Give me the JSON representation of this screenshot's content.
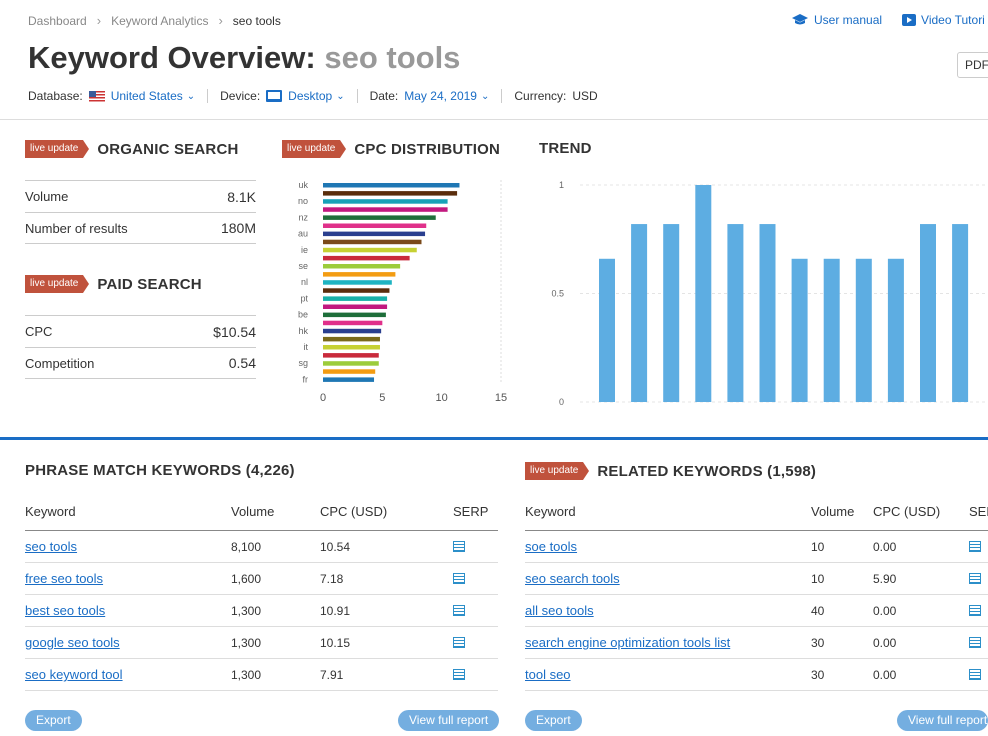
{
  "breadcrumb": [
    "Dashboard",
    "Keyword Analytics",
    "seo tools"
  ],
  "top_links": {
    "manual": "User manual",
    "video": "Video Tutori"
  },
  "title": {
    "prefix": "Keyword Overview:",
    "keyword": "seo tools"
  },
  "pdf_label": "PDF",
  "filters": {
    "database_label": "Database:",
    "database_value": "United States",
    "device_label": "Device:",
    "device_value": "Desktop",
    "date_label": "Date:",
    "date_value": "May 24, 2019",
    "currency_label": "Currency:",
    "currency_value": "USD"
  },
  "live_badge": "live update",
  "organic": {
    "title": "ORGANIC SEARCH",
    "rows": [
      {
        "label": "Volume",
        "value": "8.1K"
      },
      {
        "label": "Number of results",
        "value": "180M"
      }
    ]
  },
  "paid": {
    "title": "PAID SEARCH",
    "rows": [
      {
        "label": "CPC",
        "value": "$10.54"
      },
      {
        "label": "Competition",
        "value": "0.54"
      }
    ]
  },
  "cpc_distribution": {
    "title": "CPC DISTRIBUTION",
    "chart_data": {
      "type": "bar",
      "orientation": "horizontal",
      "categories": [
        "uk",
        "",
        "no",
        "",
        "nz",
        "",
        "au",
        "",
        "ie",
        "",
        "se",
        "",
        "nl",
        "",
        "pt",
        "",
        "be",
        "",
        "hk",
        "",
        "it",
        "",
        "sg",
        "",
        "fr"
      ],
      "values": [
        11.5,
        11.3,
        10.5,
        10.5,
        9.5,
        8.7,
        8.6,
        8.3,
        7.9,
        7.3,
        6.5,
        6.1,
        5.8,
        5.6,
        5.4,
        5.4,
        5.3,
        5.0,
        4.9,
        4.8,
        4.8,
        4.7,
        4.7,
        4.4,
        4.3
      ],
      "colors": [
        "#1f77b4",
        "#5a2d0c",
        "#17a2b8",
        "#c2197f",
        "#1e6e3a",
        "#e0308a",
        "#2a3f8f",
        "#7a4a1a",
        "#c6d133",
        "#c92a3b",
        "#9ccc3b",
        "#f39c12",
        "#1fb4c2",
        "#5a2d0c",
        "#18b0a8",
        "#c2197f",
        "#1e6e3a",
        "#e0308a",
        "#2a3f8f",
        "#7a6a1a",
        "#c6d133",
        "#c92a3b",
        "#9ccc3b",
        "#f39c12",
        "#1f77b4"
      ],
      "xticks": [
        "0",
        "5",
        "10",
        "15"
      ],
      "xlim": [
        0,
        15
      ]
    }
  },
  "trend": {
    "title": "TREND",
    "chart_data": {
      "type": "bar",
      "values": [
        0.66,
        0.82,
        0.82,
        1.0,
        0.82,
        0.82,
        0.66,
        0.66,
        0.66,
        0.66,
        0.82,
        0.82
      ],
      "yticks": [
        "1",
        "0.5",
        "0"
      ],
      "ylim": [
        0,
        1
      ],
      "color": "#5dade2",
      "grid": true
    }
  },
  "phrase_match": {
    "title": "PHRASE MATCH KEYWORDS (4,226)",
    "columns": [
      "Keyword",
      "Volume",
      "CPC (USD)",
      "SERP"
    ],
    "rows": [
      {
        "keyword": "seo tools",
        "volume": "8,100",
        "cpc": "10.54"
      },
      {
        "keyword": "free seo tools",
        "volume": "1,600",
        "cpc": "7.18"
      },
      {
        "keyword": "best seo tools",
        "volume": "1,300",
        "cpc": "10.91"
      },
      {
        "keyword": "google seo tools",
        "volume": "1,300",
        "cpc": "10.15"
      },
      {
        "keyword": "seo keyword tool",
        "volume": "1,300",
        "cpc": "7.91"
      }
    ],
    "export": "Export",
    "view_full": "View full report"
  },
  "related": {
    "title": "RELATED KEYWORDS (1,598)",
    "columns": [
      "Keyword",
      "Volume",
      "CPC (USD)",
      "SERP"
    ],
    "rows": [
      {
        "keyword": "soe tools",
        "volume": "10",
        "cpc": "0.00"
      },
      {
        "keyword": "seo search tools",
        "volume": "10",
        "cpc": "5.90"
      },
      {
        "keyword": "all seo tools",
        "volume": "40",
        "cpc": "0.00"
      },
      {
        "keyword": "search engine optimization tools list",
        "volume": "30",
        "cpc": "0.00"
      },
      {
        "keyword": "tool seo",
        "volume": "30",
        "cpc": "0.00"
      }
    ],
    "export": "Export",
    "view_full": "View full report"
  }
}
